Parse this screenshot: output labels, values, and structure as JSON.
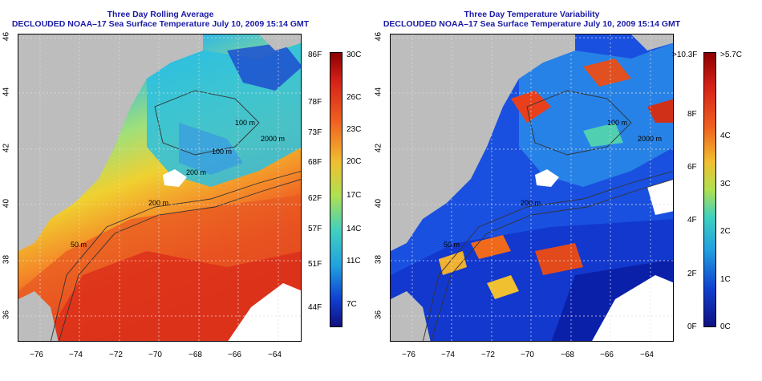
{
  "left_panel": {
    "title_line1": "Three Day Rolling Average",
    "title_line2": "DECLOUDED NOAA–17 Sea Surface Temperature July 10, 2009 15:14 GMT",
    "colorbar_f": [
      "86F",
      "78F",
      "73F",
      "68F",
      "62F",
      "57F",
      "51F",
      "44F"
    ],
    "colorbar_c": [
      "30C",
      "26C",
      "23C",
      "20C",
      "17C",
      "14C",
      "11C",
      "7C"
    ],
    "contour_labels": [
      "100 m",
      "2000 m",
      "100 m",
      "200 m",
      "200 m",
      "50 m"
    ]
  },
  "right_panel": {
    "title_line1": "Three Day Temperature Variability",
    "title_line2": "DECLOUDED NOAA–17 Sea Surface Temperature July 10, 2009 15:14 GMT",
    "colorbar_f": [
      ">10.3F",
      "8F",
      "6F",
      "4F",
      "2F",
      "0F"
    ],
    "colorbar_c": [
      ">5.7C",
      "4C",
      "3C",
      "2C",
      "1C",
      "0C"
    ],
    "contour_labels": [
      "100 m",
      "2000 m",
      "200 m",
      "50 m"
    ]
  },
  "axes": {
    "x_ticks": [
      "−76",
      "−74",
      "−72",
      "−70",
      "−68",
      "−66",
      "−64"
    ],
    "y_ticks": [
      "46",
      "44",
      "42",
      "40",
      "38",
      "36"
    ]
  },
  "colors": {
    "land": "#bdbdbd",
    "title": "#1a1aa6",
    "cloud": "#ffffff"
  }
}
